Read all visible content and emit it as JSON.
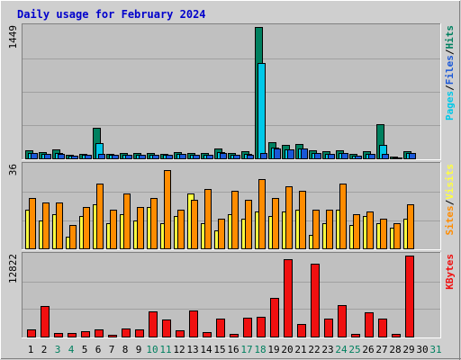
{
  "title": "Daily usage for February 2024",
  "colors": {
    "background": "#cfcfcf",
    "panel": "#c0c0c0",
    "title_text": "#0000cc",
    "hits": "#00805f",
    "files": "#00c8e8",
    "pages": "#1a58d8",
    "visits": "#ffff40",
    "sites": "#ff8c00",
    "kbytes": "#f01010",
    "day_weekend": "#00805f",
    "day_weekday": "#000000"
  },
  "chart_data": [
    {
      "type": "bar",
      "name": "pages-files-hits",
      "categories": [
        "1",
        "2",
        "3",
        "4",
        "5",
        "6",
        "7",
        "8",
        "9",
        "10",
        "11",
        "12",
        "13",
        "14",
        "15",
        "16",
        "17",
        "18",
        "19",
        "20",
        "21",
        "22",
        "23",
        "24",
        "25",
        "26",
        "27",
        "28",
        "29",
        "30",
        "31"
      ],
      "ymax_label": "1449",
      "ylim": [
        0,
        1449
      ],
      "legend": [
        {
          "text": "Pages",
          "color": "#00c8e8"
        },
        {
          "text": "Files",
          "color": "#1a58d8"
        },
        {
          "text": "Hits",
          "color": "#00805f"
        }
      ],
      "series": [
        {
          "name": "Hits",
          "values": [
            90,
            70,
            100,
            40,
            50,
            340,
            50,
            60,
            60,
            60,
            50,
            70,
            60,
            60,
            110,
            60,
            80,
            1449,
            180,
            150,
            160,
            90,
            80,
            90,
            50,
            80,
            380,
            20,
            80,
            0,
            0
          ]
        },
        {
          "name": "Files",
          "values": [
            60,
            50,
            60,
            30,
            40,
            170,
            40,
            40,
            40,
            40,
            40,
            50,
            40,
            40,
            70,
            40,
            50,
            1050,
            120,
            100,
            110,
            60,
            50,
            60,
            30,
            50,
            150,
            10,
            60,
            0,
            0
          ]
        },
        {
          "name": "Pages",
          "values": [
            55,
            45,
            50,
            25,
            35,
            50,
            35,
            35,
            35,
            35,
            35,
            45,
            35,
            35,
            55,
            35,
            40,
            60,
            110,
            95,
            105,
            55,
            45,
            55,
            25,
            45,
            50,
            8,
            55,
            0,
            0
          ]
        }
      ]
    },
    {
      "type": "bar",
      "name": "visits-sites",
      "categories": [
        "1",
        "2",
        "3",
        "4",
        "5",
        "6",
        "7",
        "8",
        "9",
        "10",
        "11",
        "12",
        "13",
        "14",
        "15",
        "16",
        "17",
        "18",
        "19",
        "20",
        "21",
        "22",
        "23",
        "24",
        "25",
        "26",
        "27",
        "28",
        "29",
        "30",
        "31"
      ],
      "ymax_label": "36",
      "ylim": [
        0,
        36
      ],
      "legend": [
        {
          "text": "Sites",
          "color": "#ff8c00"
        },
        {
          "text": "Visits",
          "color": "#ffff40"
        }
      ],
      "series": [
        {
          "name": "Visits",
          "values": [
            17,
            12,
            15,
            5,
            14,
            19,
            11,
            15,
            12,
            18,
            11,
            14,
            24,
            11,
            8,
            15,
            13,
            16,
            14,
            16,
            17,
            6,
            11,
            17,
            10,
            14,
            11,
            9,
            13,
            0,
            0
          ]
        },
        {
          "name": "Sites",
          "values": [
            22,
            20,
            20,
            10,
            18,
            28,
            17,
            24,
            18,
            22,
            34,
            17,
            21,
            26,
            13,
            25,
            21,
            30,
            22,
            27,
            25,
            17,
            17,
            28,
            15,
            16,
            13,
            11,
            19,
            0,
            0
          ]
        }
      ]
    },
    {
      "type": "bar",
      "name": "kbytes",
      "categories": [
        "1",
        "2",
        "3",
        "4",
        "5",
        "6",
        "7",
        "8",
        "9",
        "10",
        "11",
        "12",
        "13",
        "14",
        "15",
        "16",
        "17",
        "18",
        "19",
        "20",
        "21",
        "22",
        "23",
        "24",
        "25",
        "26",
        "27",
        "28",
        "29",
        "30",
        "31"
      ],
      "ymax_label": "12822",
      "ylim": [
        0,
        12822
      ],
      "legend": [
        {
          "text": "KBytes",
          "color": "#f01010"
        }
      ],
      "series": [
        {
          "name": "KBytes",
          "values": [
            1200,
            4800,
            560,
            560,
            880,
            1200,
            350,
            1300,
            1200,
            4000,
            2700,
            1000,
            4100,
            650,
            2900,
            480,
            3000,
            3100,
            6100,
            12200,
            2000,
            11600,
            2800,
            5000,
            400,
            3800,
            2800,
            450,
            12822,
            0,
            0
          ]
        }
      ]
    }
  ],
  "x_axis": {
    "days": [
      "1",
      "2",
      "3",
      "4",
      "5",
      "6",
      "7",
      "8",
      "9",
      "10",
      "11",
      "12",
      "13",
      "14",
      "15",
      "16",
      "17",
      "18",
      "19",
      "20",
      "21",
      "22",
      "23",
      "24",
      "25",
      "26",
      "27",
      "28",
      "29",
      "30",
      "31"
    ],
    "weekend_days": [
      "3",
      "4",
      "10",
      "11",
      "17",
      "18",
      "24",
      "25",
      "31"
    ]
  }
}
